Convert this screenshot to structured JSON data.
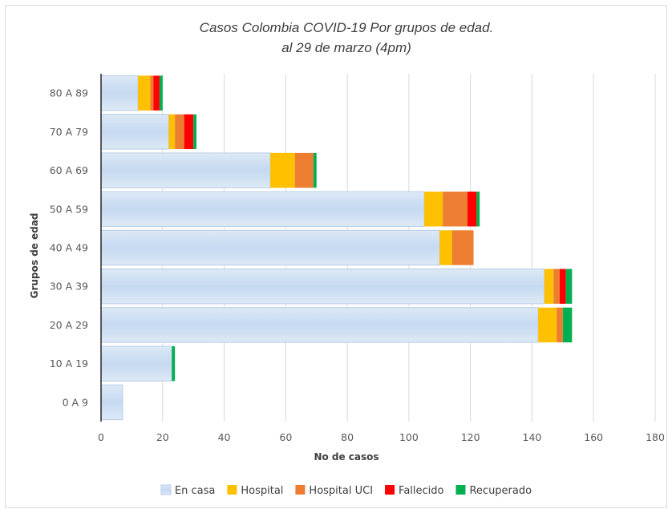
{
  "chart_data": {
    "type": "bar",
    "orientation": "horizontal",
    "stacked": true,
    "title": "Casos Colombia COVID-19 Por grupos de edad.",
    "subtitle": "al 29 de marzo (4pm)",
    "xlabel": "No de casos",
    "ylabel": "Grupos de edad",
    "xlim": [
      0,
      180
    ],
    "xticks": [
      0,
      20,
      40,
      60,
      80,
      100,
      120,
      140,
      160,
      180
    ],
    "grid": "vertical",
    "legend_position": "bottom",
    "categories": [
      "0 A 9",
      "10 A 19",
      "20 A 29",
      "30 A 39",
      "40 A 49",
      "50 A 59",
      "60 A 69",
      "70 A 79",
      "80 A 89"
    ],
    "series": [
      {
        "name": "En casa",
        "color": "#c5d9f1",
        "values": [
          7,
          23,
          142,
          144,
          110,
          105,
          55,
          22,
          12
        ]
      },
      {
        "name": "Hospital",
        "color": "#ffc000",
        "values": [
          0,
          0,
          6,
          3,
          4,
          6,
          8,
          2,
          4
        ]
      },
      {
        "name": "Hospital UCI",
        "color": "#ed7d31",
        "values": [
          0,
          0,
          2,
          2,
          7,
          8,
          6,
          3,
          1
        ]
      },
      {
        "name": "Fallecido",
        "color": "#ff0000",
        "values": [
          0,
          0,
          0,
          2,
          0,
          3,
          0,
          3,
          2
        ]
      },
      {
        "name": "Recuperado",
        "color": "#00b050",
        "values": [
          0,
          1,
          3,
          2,
          0,
          1,
          1,
          1,
          1
        ]
      }
    ]
  }
}
